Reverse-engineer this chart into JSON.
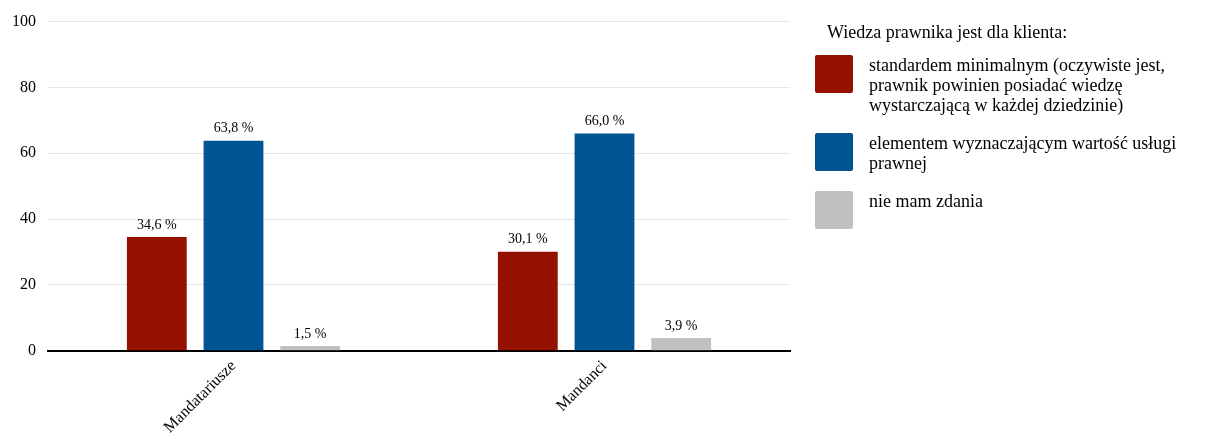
{
  "chart_data": {
    "type": "bar",
    "legend_title": "Wiedza prawnika jest dla klienta:",
    "categories": [
      "Mandatariusze",
      "Mandanci"
    ],
    "series": [
      {
        "name": "standardem minimalnym (oczywiste jest, prawnik powinien posiadać wiedzę wystarczającą w każdej dziedzinie)",
        "color": "#941100",
        "values": [
          34.6,
          30.1
        ],
        "value_labels": [
          "34,6 %",
          "30,1 %"
        ]
      },
      {
        "name": "elementem wyznaczającym wartość usługi prawnej",
        "color": "#005493",
        "values": [
          63.8,
          66.0
        ],
        "value_labels": [
          "63,8 %",
          "66,0 %"
        ]
      },
      {
        "name": "nie mam zdania",
        "color": "#c0c0c0",
        "values": [
          1.5,
          3.9
        ],
        "value_labels": [
          "1,5 %",
          "3,9 %"
        ]
      }
    ],
    "ylim": [
      0,
      100
    ],
    "yticks": [
      0,
      20,
      40,
      60,
      80,
      100
    ],
    "grid": "y",
    "legend": "right"
  }
}
